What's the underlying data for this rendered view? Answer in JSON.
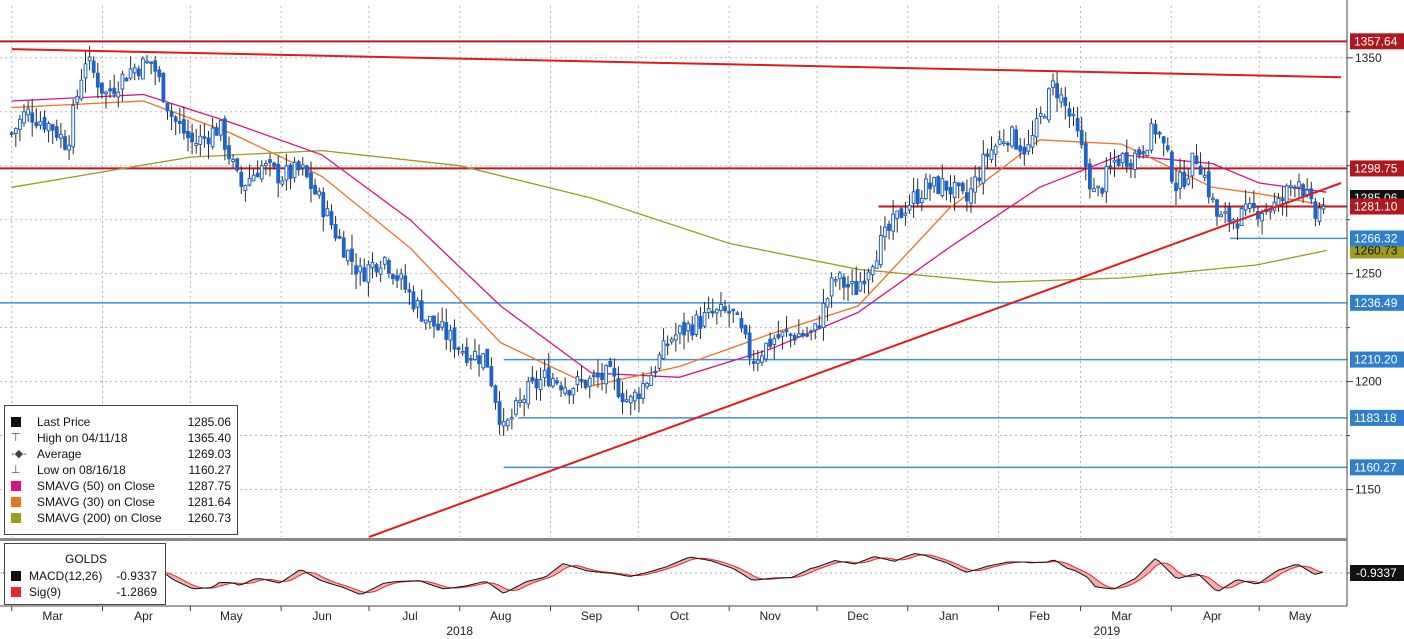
{
  "chart_data": {
    "type": "candlestick",
    "instrument": "GOLDS",
    "y_axis": {
      "ylim": [
        1128,
        1374
      ],
      "ticks": [
        1150,
        1200,
        1250,
        1300,
        1350
      ],
      "position": "right"
    },
    "x_axis": {
      "months": [
        "Mar",
        "Apr",
        "May",
        "Jun",
        "Jul",
        "Aug",
        "Sep",
        "Oct",
        "Nov",
        "Dec",
        "Jan",
        "Feb",
        "Mar",
        "Apr",
        "May"
      ],
      "years": [
        "2018",
        "2019"
      ]
    },
    "price_key_points": [
      {
        "date": "2018-03-01",
        "close": 1315
      },
      {
        "date": "2018-03-06",
        "close": 1325
      },
      {
        "date": "2018-03-15",
        "close": 1318
      },
      {
        "date": "2018-03-20",
        "close": 1310
      },
      {
        "date": "2018-03-26",
        "close": 1350
      },
      {
        "date": "2018-04-02",
        "close": 1333
      },
      {
        "date": "2018-04-11",
        "close": 1345
      },
      {
        "date": "2018-04-18",
        "close": 1348
      },
      {
        "date": "2018-04-25",
        "close": 1322
      },
      {
        "date": "2018-05-02",
        "close": 1310
      },
      {
        "date": "2018-05-11",
        "close": 1318
      },
      {
        "date": "2018-05-18",
        "close": 1290
      },
      {
        "date": "2018-05-25",
        "close": 1300
      },
      {
        "date": "2018-06-01",
        "close": 1295
      },
      {
        "date": "2018-06-08",
        "close": 1298
      },
      {
        "date": "2018-06-15",
        "close": 1282
      },
      {
        "date": "2018-06-20",
        "close": 1268
      },
      {
        "date": "2018-06-28",
        "close": 1250
      },
      {
        "date": "2018-07-06",
        "close": 1258
      },
      {
        "date": "2018-07-13",
        "close": 1244
      },
      {
        "date": "2018-07-20",
        "close": 1230
      },
      {
        "date": "2018-07-27",
        "close": 1222
      },
      {
        "date": "2018-08-03",
        "close": 1214
      },
      {
        "date": "2018-08-10",
        "close": 1211
      },
      {
        "date": "2018-08-16",
        "close": 1177
      },
      {
        "date": "2018-08-24",
        "close": 1195
      },
      {
        "date": "2018-08-31",
        "close": 1203
      },
      {
        "date": "2018-09-07",
        "close": 1198
      },
      {
        "date": "2018-09-14",
        "close": 1200
      },
      {
        "date": "2018-09-21",
        "close": 1203
      },
      {
        "date": "2018-09-28",
        "close": 1190
      },
      {
        "date": "2018-10-05",
        "close": 1203
      },
      {
        "date": "2018-10-12",
        "close": 1220
      },
      {
        "date": "2018-10-19",
        "close": 1226
      },
      {
        "date": "2018-10-26",
        "close": 1231
      },
      {
        "date": "2018-11-02",
        "close": 1232
      },
      {
        "date": "2018-11-09",
        "close": 1210
      },
      {
        "date": "2018-11-16",
        "close": 1220
      },
      {
        "date": "2018-11-23",
        "close": 1222
      },
      {
        "date": "2018-11-30",
        "close": 1222
      },
      {
        "date": "2018-12-07",
        "close": 1248
      },
      {
        "date": "2018-12-14",
        "close": 1242
      },
      {
        "date": "2018-12-21",
        "close": 1260
      },
      {
        "date": "2018-12-31",
        "close": 1281
      },
      {
        "date": "2019-01-07",
        "close": 1290
      },
      {
        "date": "2019-01-14",
        "close": 1291
      },
      {
        "date": "2019-01-21",
        "close": 1283
      },
      {
        "date": "2019-01-28",
        "close": 1305
      },
      {
        "date": "2019-02-04",
        "close": 1315
      },
      {
        "date": "2019-02-11",
        "close": 1307
      },
      {
        "date": "2019-02-20",
        "close": 1338
      },
      {
        "date": "2019-02-27",
        "close": 1318
      },
      {
        "date": "2019-03-06",
        "close": 1285
      },
      {
        "date": "2019-03-13",
        "close": 1303
      },
      {
        "date": "2019-03-20",
        "close": 1305
      },
      {
        "date": "2019-03-27",
        "close": 1318
      },
      {
        "date": "2019-04-03",
        "close": 1290
      },
      {
        "date": "2019-04-10",
        "close": 1305
      },
      {
        "date": "2019-04-17",
        "close": 1275
      },
      {
        "date": "2019-04-24",
        "close": 1276
      },
      {
        "date": "2019-05-01",
        "close": 1280
      },
      {
        "date": "2019-05-08",
        "close": 1282
      },
      {
        "date": "2019-05-14",
        "close": 1296
      },
      {
        "date": "2019-05-20",
        "close": 1276
      },
      {
        "date": "2019-05-24",
        "close": 1285
      }
    ],
    "sma50_points": [
      {
        "date": "2018-03-01",
        "value": 1330
      },
      {
        "date": "2018-04-15",
        "value": 1333
      },
      {
        "date": "2018-05-15",
        "value": 1320
      },
      {
        "date": "2018-06-15",
        "value": 1305
      },
      {
        "date": "2018-07-15",
        "value": 1275
      },
      {
        "date": "2018-08-15",
        "value": 1235
      },
      {
        "date": "2018-09-15",
        "value": 1204
      },
      {
        "date": "2018-10-15",
        "value": 1202
      },
      {
        "date": "2018-11-15",
        "value": 1215
      },
      {
        "date": "2018-12-15",
        "value": 1232
      },
      {
        "date": "2019-01-15",
        "value": 1262
      },
      {
        "date": "2019-02-15",
        "value": 1290
      },
      {
        "date": "2019-03-15",
        "value": 1305
      },
      {
        "date": "2019-04-15",
        "value": 1301
      },
      {
        "date": "2019-05-01",
        "value": 1292
      },
      {
        "date": "2019-05-24",
        "value": 1287.75
      }
    ],
    "sma30_points": [
      {
        "date": "2018-03-01",
        "value": 1327
      },
      {
        "date": "2018-04-15",
        "value": 1330
      },
      {
        "date": "2018-05-15",
        "value": 1315
      },
      {
        "date": "2018-06-15",
        "value": 1295
      },
      {
        "date": "2018-07-15",
        "value": 1262
      },
      {
        "date": "2018-08-15",
        "value": 1218
      },
      {
        "date": "2018-09-15",
        "value": 1198
      },
      {
        "date": "2018-10-15",
        "value": 1207
      },
      {
        "date": "2018-11-15",
        "value": 1222
      },
      {
        "date": "2018-12-15",
        "value": 1235
      },
      {
        "date": "2019-01-15",
        "value": 1280
      },
      {
        "date": "2019-02-15",
        "value": 1312
      },
      {
        "date": "2019-03-15",
        "value": 1310
      },
      {
        "date": "2019-04-15",
        "value": 1290
      },
      {
        "date": "2019-05-01",
        "value": 1287
      },
      {
        "date": "2019-05-24",
        "value": 1281.64
      }
    ],
    "sma200_points": [
      {
        "date": "2018-03-01",
        "value": 1290
      },
      {
        "date": "2018-05-01",
        "value": 1304
      },
      {
        "date": "2018-06-15",
        "value": 1307
      },
      {
        "date": "2018-08-01",
        "value": 1300
      },
      {
        "date": "2018-09-15",
        "value": 1285
      },
      {
        "date": "2018-11-01",
        "value": 1264
      },
      {
        "date": "2018-12-15",
        "value": 1252
      },
      {
        "date": "2019-01-31",
        "value": 1246
      },
      {
        "date": "2019-03-15",
        "value": 1248
      },
      {
        "date": "2019-04-30",
        "value": 1254
      },
      {
        "date": "2019-05-24",
        "value": 1260.73
      }
    ],
    "horizontal_levels": [
      {
        "value": 1357.64,
        "label": "1357.64",
        "color": "#c0171f",
        "tag_bg": "#b01820"
      },
      {
        "value": 1298.75,
        "label": "1298.75",
        "color": "#c0171f",
        "tag_bg": "#b01820"
      },
      {
        "value": 1281.1,
        "label": "1281.10",
        "color": "#c0171f",
        "tag_bg": "#b01820"
      },
      {
        "value": 1266.32,
        "label": "1266.32",
        "color": "#3d8fd9",
        "tag_bg": "#2f7fcc"
      },
      {
        "value": 1236.49,
        "label": "1236.49",
        "color": "#3d8fd9",
        "tag_bg": "#2f7fcc"
      },
      {
        "value": 1210.2,
        "label": "1210.20",
        "color": "#3d8fd9",
        "tag_bg": "#2f7fcc"
      },
      {
        "value": 1183.18,
        "label": "1183.18",
        "color": "#3d8fd9",
        "tag_bg": "#2f7fcc"
      },
      {
        "value": 1160.27,
        "label": "1160.27",
        "color": "#3d8fd9",
        "tag_bg": "#2f7fcc"
      }
    ],
    "side_tags": [
      {
        "value": 1260.73,
        "label": "1260.73",
        "tag_bg": "#a09a1e",
        "text_color": "#111"
      },
      {
        "value": 1285.06,
        "label": "1285.06",
        "tag_bg": "#111111",
        "text_color": "#ffffff"
      }
    ],
    "trendlines": [
      {
        "name": "resistance",
        "from": {
          "date": "2018-03-01",
          "value": 1354
        },
        "to": {
          "date": "2019-05-29",
          "value": 1341
        }
      },
      {
        "name": "support",
        "from": {
          "date": "2018-07-01",
          "value": 1128
        },
        "to": {
          "date": "2019-05-29",
          "value": 1292
        }
      }
    ],
    "legend": [
      {
        "symbol": "square",
        "color": "#111111",
        "label": "Last Price",
        "value": "1285.06"
      },
      {
        "symbol": "high",
        "color": "#444444",
        "label": "High on 04/11/18",
        "value": "1365.40"
      },
      {
        "symbol": "avg",
        "color": "#444444",
        "label": "Average",
        "value": "1269.03"
      },
      {
        "symbol": "low",
        "color": "#444444",
        "label": "Low on 08/16/18",
        "value": "1160.27"
      },
      {
        "symbol": "square",
        "color": "#d4148c",
        "label": "SMAVG (50)  on Close",
        "value": "1287.75"
      },
      {
        "symbol": "square",
        "color": "#f07020",
        "label": "SMAVG (30)  on Close",
        "value": "1281.64"
      },
      {
        "symbol": "square",
        "color": "#a09a1e",
        "label": "SMAVG (200)  on Close",
        "value": "1260.73"
      }
    ],
    "macd": {
      "title": "GOLDS",
      "entries": [
        {
          "color": "#111111",
          "label": "MACD(12,26)",
          "value": "-0.9337"
        },
        {
          "color": "#e8262a",
          "label": "Sig(9)",
          "value": "-1.2869"
        }
      ],
      "last_tag": "-0.9337"
    }
  },
  "colors": {
    "up_candle": "#1e64c8",
    "down_candle": "#1e64c8",
    "grid": "#b5b5b5",
    "sma50": "#d4148c",
    "sma30": "#f07020",
    "sma200": "#a09a1e",
    "trend": "#e01b1b"
  },
  "legend_rows": {
    "r0": {
      "label": "Last Price",
      "value": "1285.06"
    },
    "r1": {
      "label": "High on 04/11/18",
      "value": "1365.40"
    },
    "r2": {
      "label": "Average",
      "value": "1269.03"
    },
    "r3": {
      "label": "Low on 08/16/18",
      "value": "1160.27"
    },
    "r4": {
      "label": "SMAVG (50)  on Close",
      "value": "1287.75"
    },
    "r5": {
      "label": "SMAVG (30)  on Close",
      "value": "1281.64"
    },
    "r6": {
      "label": "SMAVG (200)  on Close",
      "value": "1260.73"
    }
  },
  "macd_box": {
    "title": "GOLDS",
    "macd_label": "MACD(12,26)",
    "macd_value": "-0.9337",
    "sig_label": "Sig(9)",
    "sig_value": "-1.2869"
  }
}
